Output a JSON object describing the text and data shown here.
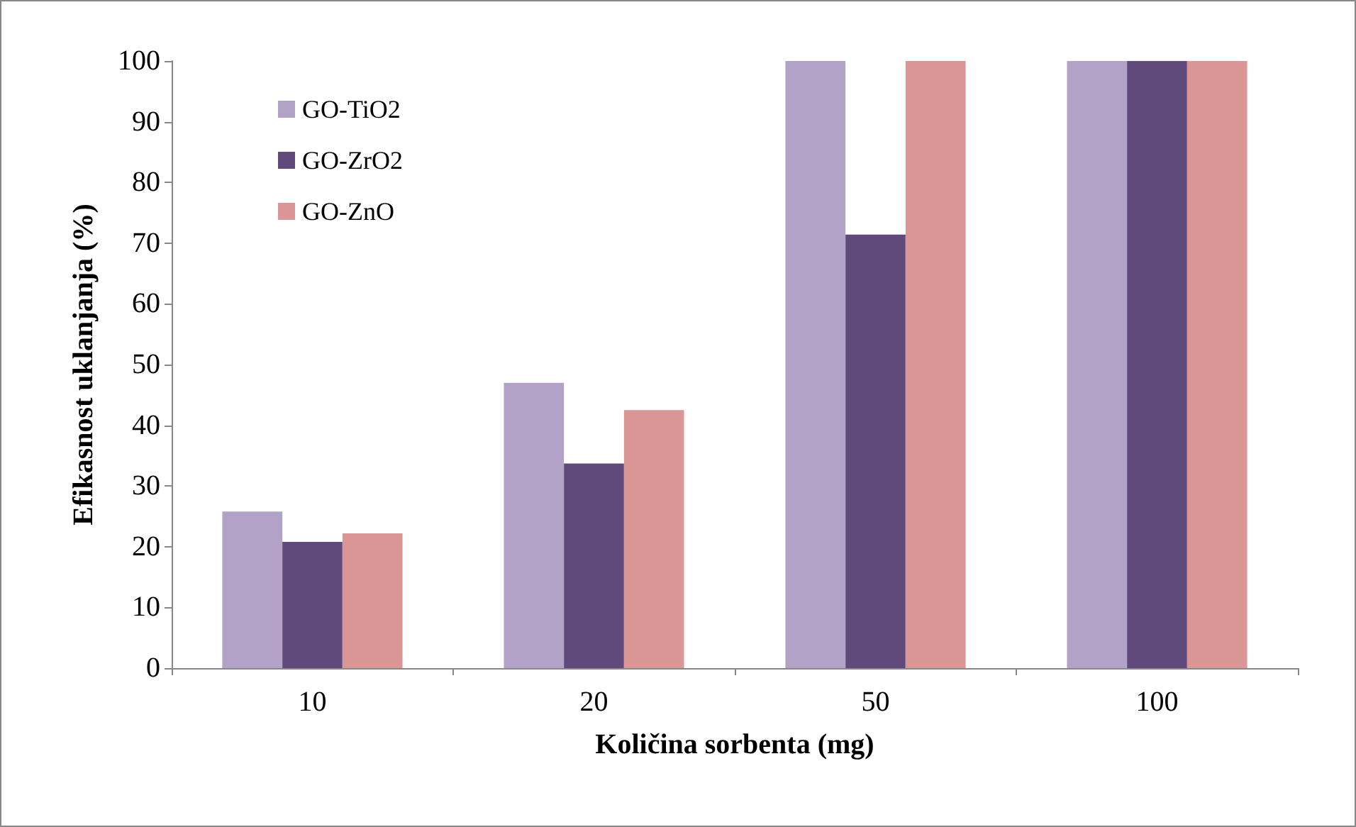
{
  "chart_data": {
    "type": "bar",
    "xlabel": "Količina sorbenta (mg)",
    "ylabel": "Efikasnost uklanjanja (%)",
    "categories": [
      "10",
      "20",
      "50",
      "100"
    ],
    "series": [
      {
        "name": "GO-TiO2",
        "color": "#b3a2c7",
        "values": [
          25.8,
          47,
          100,
          100
        ]
      },
      {
        "name": "GO-ZrO2",
        "color": "#604a7b",
        "values": [
          20.8,
          33.7,
          71.4,
          100
        ]
      },
      {
        "name": "GO-ZnO",
        "color": "#d99694",
        "values": [
          22.2,
          42.5,
          100,
          100
        ]
      }
    ],
    "ylim": [
      0,
      100
    ],
    "yticks": [
      0,
      10,
      20,
      30,
      40,
      50,
      60,
      70,
      80,
      90,
      100
    ],
    "grid": false,
    "legend": "top left"
  }
}
